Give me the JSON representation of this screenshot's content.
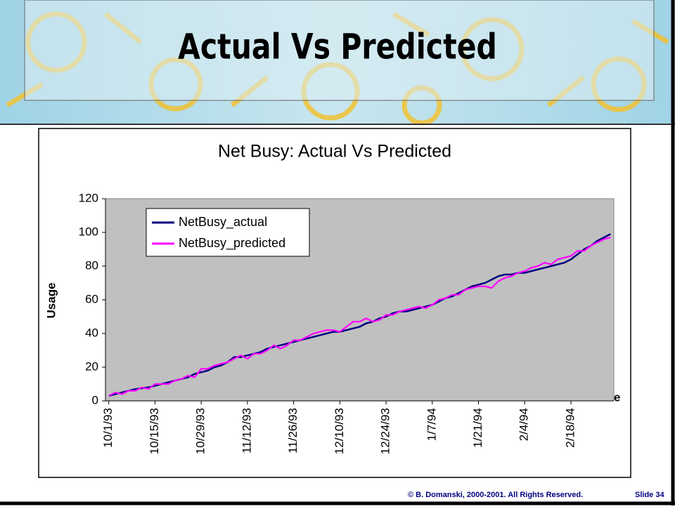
{
  "slide_title": "Actual Vs Predicted",
  "footer": "© B. Domanski, 2000-2001.  All Rights Reserved.",
  "slide_number": "Slide 34",
  "chart_data": {
    "type": "line",
    "title": "Net Busy: Actual Vs Predicted",
    "y_label": "Usage",
    "x_label": "Date",
    "categories": [
      "10/1/93",
      null,
      null,
      null,
      null,
      null,
      null,
      "10/15/93",
      null,
      null,
      null,
      null,
      null,
      null,
      "10/29/93",
      null,
      null,
      null,
      null,
      null,
      null,
      "11/12/93",
      null,
      null,
      null,
      null,
      null,
      null,
      "11/26/93",
      null,
      null,
      null,
      null,
      null,
      null,
      "12/10/93",
      null,
      null,
      null,
      null,
      null,
      null,
      "12/24/93",
      null,
      null,
      null,
      null,
      null,
      null,
      "1/7/94",
      null,
      null,
      null,
      null,
      null,
      null,
      "1/21/94",
      null,
      null,
      null,
      null,
      null,
      null,
      "2/4/94",
      null,
      null,
      null,
      null,
      null,
      null,
      "2/18/94",
      null,
      null,
      null,
      null,
      null,
      null
    ],
    "series": [
      {
        "name": "NetBusy_actual",
        "color": "#000080",
        "values": [
          3,
          4,
          5,
          6,
          7,
          7.5,
          8,
          9,
          10,
          11,
          12,
          13,
          14,
          16,
          17,
          18,
          20,
          21,
          23,
          26,
          26,
          27,
          28,
          29,
          31,
          32,
          33,
          34,
          35,
          36,
          37,
          38,
          39,
          40,
          41,
          41,
          42,
          43,
          44,
          46,
          47,
          49,
          50,
          52,
          53,
          53,
          54,
          55,
          56,
          57,
          59,
          61,
          62,
          64,
          66,
          68,
          69,
          70,
          72,
          74,
          75,
          75,
          76,
          76,
          77,
          78,
          79,
          80,
          81,
          82,
          84,
          87,
          90,
          92,
          95,
          97,
          99
        ]
      },
      {
        "name": "NetBusy_predicted",
        "color": "#ff00ff",
        "values": [
          3,
          5,
          4,
          6,
          6,
          8,
          7,
          10,
          10,
          10,
          12,
          13,
          15,
          14,
          19,
          19,
          21,
          22,
          23,
          25,
          27,
          25,
          28,
          28,
          30,
          33,
          31,
          33,
          36,
          36,
          38,
          40,
          41,
          42,
          42,
          41,
          44,
          47,
          47,
          49,
          47,
          48,
          51,
          51,
          53,
          54,
          55,
          56,
          55,
          57,
          60,
          61,
          63,
          63,
          66,
          67,
          68,
          68,
          67,
          71,
          73,
          74,
          76,
          77,
          79,
          80,
          82,
          81,
          84,
          85,
          86,
          89,
          89,
          92,
          94,
          96,
          97
        ]
      }
    ],
    "ylim": [
      0,
      120
    ],
    "yticks": [
      0,
      20,
      40,
      60,
      80,
      100,
      120
    ],
    "plot_background": "#c0c0c0",
    "legend": "upper left"
  }
}
